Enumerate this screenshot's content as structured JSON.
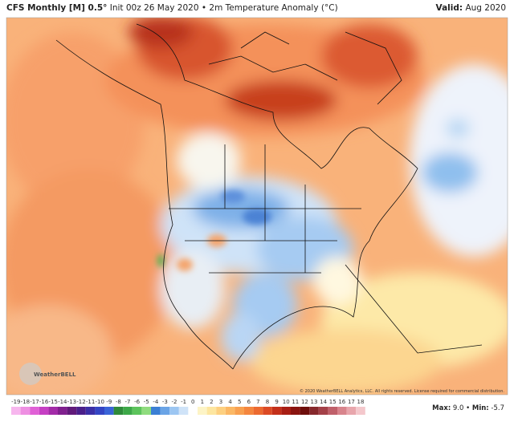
{
  "header": {
    "model": "CFS Monthly [M] 0.5°",
    "description": "Init 00z 26 May 2020 • 2m Temperature Anomaly (°C)",
    "valid_label": "Valid:",
    "valid": "Aug 2020"
  },
  "logo": "WeatherBELL",
  "copyright": "© 2020 WeatherBELL Analytics, LLC. All rights reserved. License required for commercial distribution.",
  "stats": {
    "max_label": "Max:",
    "max": "9.0",
    "separator": "•",
    "min_label": "Min:",
    "min": "-5.7"
  },
  "colorbar": {
    "ticks": [
      -19,
      -18,
      -17,
      -16,
      -15,
      -14,
      -13,
      -12,
      -11,
      -10,
      -9,
      -8,
      -7,
      -6,
      -5,
      -4,
      -3,
      -2,
      -1,
      0,
      1,
      2,
      3,
      4,
      5,
      6,
      7,
      8,
      9,
      10,
      11,
      12,
      13,
      14,
      15,
      16,
      17,
      18
    ],
    "colors": [
      "#f7b6ee",
      "#ee8fe2",
      "#e060d6",
      "#c63fc4",
      "#a32ba8",
      "#80208e",
      "#611a7a",
      "#4a1f8a",
      "#3b2fa6",
      "#3445c4",
      "#3a64d8",
      "#2f8a3a",
      "#3da848",
      "#5cc45c",
      "#8fdc7e",
      "#3b7fd4",
      "#6aa4e6",
      "#9cc6f2",
      "#cfe3f8",
      "#ffffff",
      "#fdf4c6",
      "#fde6a0",
      "#fdd080",
      "#fbb865",
      "#f8a050",
      "#f4863e",
      "#ec6a30",
      "#dc4a24",
      "#c4301a",
      "#a81e14",
      "#8a1410",
      "#6e0e0c",
      "#86282c",
      "#a44048",
      "#c0606a",
      "#d8848c",
      "#e8a6ac",
      "#f4c8cc"
    ]
  }
}
